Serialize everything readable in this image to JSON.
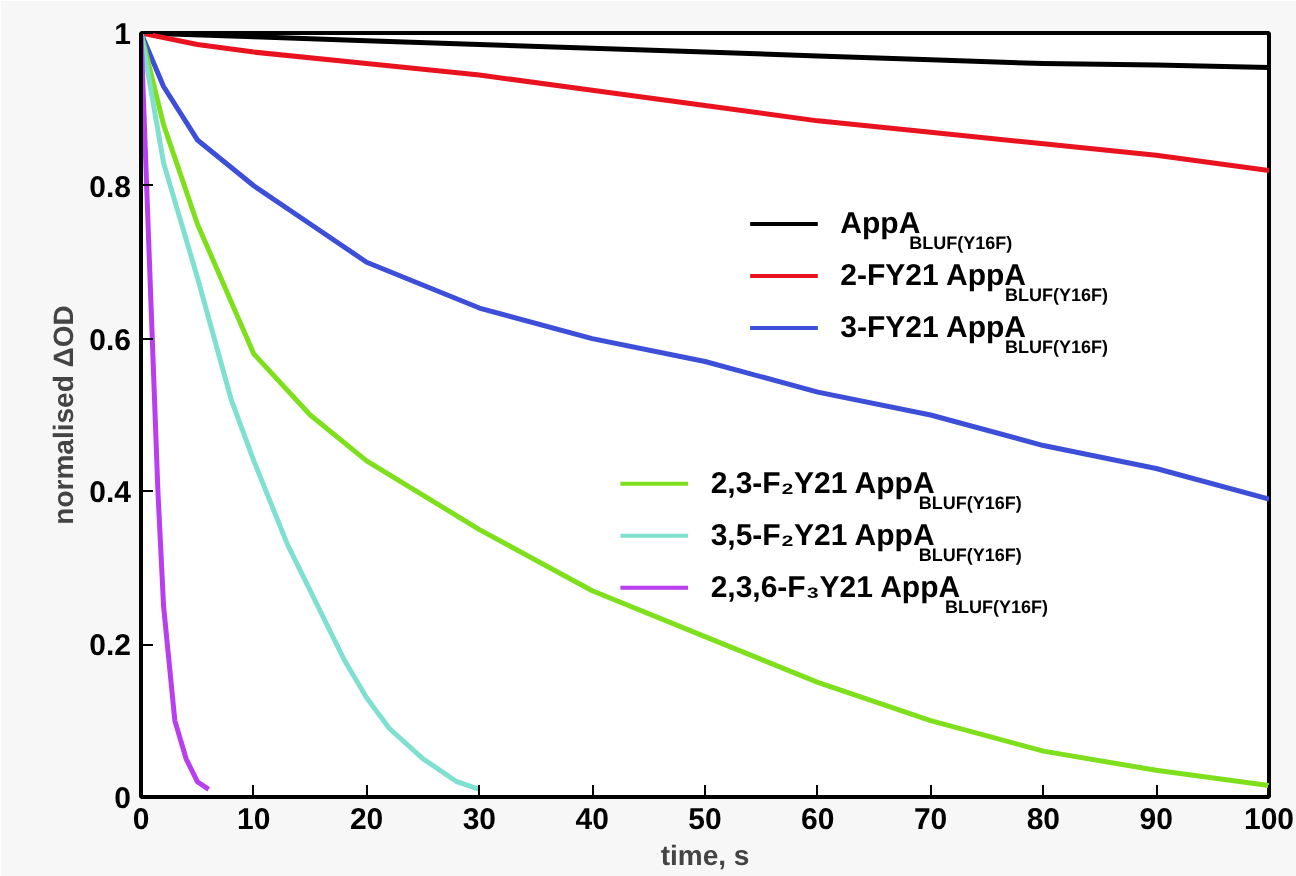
{
  "chart_data": {
    "type": "line",
    "xlabel": "time, s",
    "ylabel": "normalised ΔOD",
    "xlim": [
      0,
      100
    ],
    "ylim": [
      0,
      1
    ],
    "xticks": [
      0,
      10,
      20,
      30,
      40,
      50,
      60,
      70,
      80,
      90,
      100
    ],
    "yticks": [
      0,
      0.2,
      0.4,
      0.6,
      0.8,
      1
    ],
    "grid": false,
    "legend": "right",
    "marker": "none",
    "line_style": "solid",
    "series": [
      {
        "name": "AppA$_{BLUF(Y16F)}$",
        "color": "#000000",
        "x": [
          0,
          10,
          20,
          30,
          40,
          50,
          60,
          70,
          80,
          90,
          100
        ],
        "values": [
          1,
          0.995,
          0.99,
          0.985,
          0.98,
          0.975,
          0.97,
          0.965,
          0.96,
          0.958,
          0.955
        ]
      },
      {
        "name": "2-FY21 AppA$_{BLUF(Y16F)}$",
        "color": "#e8131e",
        "x": [
          0,
          5,
          10,
          20,
          30,
          40,
          50,
          60,
          70,
          80,
          90,
          100
        ],
        "values": [
          1,
          0.985,
          0.975,
          0.96,
          0.945,
          0.925,
          0.905,
          0.885,
          0.87,
          0.855,
          0.84,
          0.82
        ]
      },
      {
        "name": "3-FY21 AppA$_{BLUF(Y16F)}$",
        "color": "#3d4fd8",
        "x": [
          0,
          2,
          5,
          10,
          15,
          20,
          30,
          40,
          50,
          60,
          70,
          80,
          90,
          100
        ],
        "values": [
          1,
          0.93,
          0.86,
          0.8,
          0.75,
          0.7,
          0.64,
          0.6,
          0.57,
          0.53,
          0.5,
          0.46,
          0.43,
          0.39
        ]
      },
      {
        "name": "2,3-F₂Y21 AppA$_{BLUF(Y16F)}$",
        "color": "#7ee01c",
        "x": [
          0,
          2,
          5,
          10,
          15,
          20,
          30,
          40,
          50,
          60,
          70,
          80,
          90,
          100
        ],
        "values": [
          1,
          0.88,
          0.75,
          0.58,
          0.5,
          0.44,
          0.35,
          0.27,
          0.21,
          0.15,
          0.1,
          0.06,
          0.035,
          0.015
        ]
      },
      {
        "name": "3,5-F₂Y21 AppA$_{BLUF(Y16F)}$",
        "color": "#7fe0d0",
        "x": [
          0,
          2,
          5,
          8,
          10,
          13,
          15,
          18,
          20,
          22,
          25,
          28,
          30
        ],
        "values": [
          1,
          0.83,
          0.68,
          0.52,
          0.44,
          0.33,
          0.27,
          0.18,
          0.13,
          0.09,
          0.05,
          0.02,
          0.01
        ]
      },
      {
        "name": "2,3,6-F₃Y21 AppA$_{BLUF(Y16F)}$",
        "color": "#b93ef0",
        "x": [
          0,
          0.5,
          1,
          1.5,
          2,
          3,
          4,
          5,
          6
        ],
        "values": [
          1,
          0.8,
          0.6,
          0.4,
          0.25,
          0.1,
          0.05,
          0.02,
          0.01
        ]
      }
    ]
  }
}
